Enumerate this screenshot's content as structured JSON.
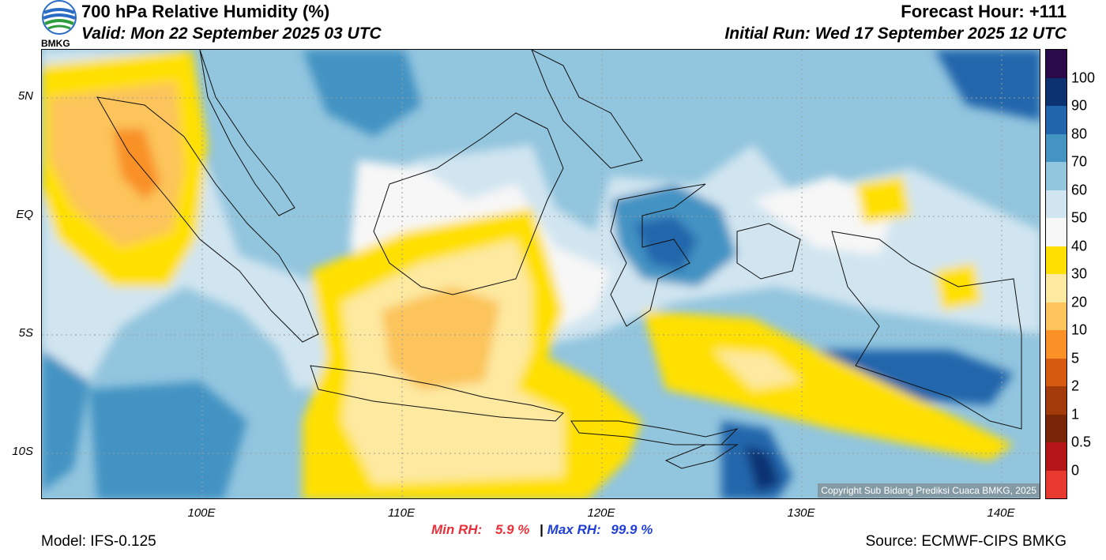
{
  "header": {
    "title": "700 hPa Relative Humidity (%)",
    "valid": "Valid: Mon 22 September 2025 03 UTC",
    "forecast_hour": "Forecast Hour: +111",
    "initial_run": "Initial Run: Wed 17 September 2025 12 UTC",
    "logo_text": "BMKG"
  },
  "axes": {
    "lat_labels": [
      "5N",
      "EQ",
      "5S",
      "10S"
    ],
    "lon_labels": [
      "100E",
      "110E",
      "120E",
      "130E",
      "140E"
    ]
  },
  "colorbar": {
    "labels": [
      "100",
      "90",
      "80",
      "70",
      "60",
      "50",
      "40",
      "30",
      "20",
      "10",
      "5",
      "2",
      "1",
      "0.5",
      "0"
    ],
    "colors": [
      "#2a0a4a",
      "#0d3272",
      "#2166ac",
      "#4393c3",
      "#92c5de",
      "#d1e5f0",
      "#f7f7f7",
      "#ffe000",
      "#fde9a0",
      "#fcc45a",
      "#f99127",
      "#d65a0f",
      "#a33a0a",
      "#7a2408",
      "#b31519",
      "#e8392e"
    ]
  },
  "stats": {
    "min_label": "Min RH:",
    "min_value": "5.9 %",
    "separator": "|",
    "max_label": "Max RH:",
    "max_value": "99.9 %",
    "min_color": "#e8303a",
    "max_color": "#1f3fd6"
  },
  "footer": {
    "model": "Model: IFS-0.125",
    "source": "Source: ECMWF-CIPS BMKG",
    "copyright": "Copyright Sub Bidang Prediksi Cuaca BMKG, 2025"
  }
}
